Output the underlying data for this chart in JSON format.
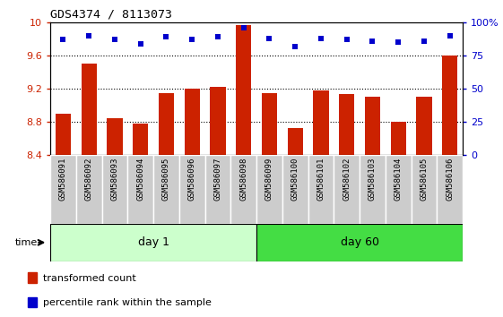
{
  "title": "GDS4374 / 8113073",
  "samples": [
    "GSM586091",
    "GSM586092",
    "GSM586093",
    "GSM586094",
    "GSM586095",
    "GSM586096",
    "GSM586097",
    "GSM586098",
    "GSM586099",
    "GSM586100",
    "GSM586101",
    "GSM586102",
    "GSM586103",
    "GSM586104",
    "GSM586105",
    "GSM586106"
  ],
  "bar_values": [
    8.9,
    9.5,
    8.85,
    8.78,
    9.15,
    9.2,
    9.22,
    9.97,
    9.15,
    8.73,
    9.18,
    9.14,
    9.1,
    8.8,
    9.1,
    9.6
  ],
  "dot_values": [
    87,
    90,
    87,
    84,
    89,
    87,
    89,
    96,
    88,
    82,
    88,
    87,
    86,
    85,
    86,
    90
  ],
  "ylim_left": [
    8.4,
    10.0
  ],
  "ylim_right": [
    0,
    100
  ],
  "yticks_left": [
    8.4,
    8.8,
    9.2,
    9.6,
    10.0
  ],
  "ytick_labels_left": [
    "8.4",
    "8.8",
    "9.2",
    "9.6",
    "10"
  ],
  "yticks_right": [
    0,
    25,
    50,
    75,
    100
  ],
  "ytick_labels_right": [
    "0",
    "25",
    "50",
    "75",
    "100%"
  ],
  "dotted_lines": [
    8.8,
    9.2,
    9.6
  ],
  "bar_color": "#cc2200",
  "dot_color": "#0000cc",
  "tick_label_color_left": "#cc2200",
  "tick_label_color_right": "#0000cc",
  "legend_bar_label": "transformed count",
  "legend_dot_label": "percentile rank within the sample",
  "day1_color": "#ccffcc",
  "day60_color": "#44dd44",
  "sample_box_color": "#cccccc",
  "figsize": [
    5.61,
    3.54
  ],
  "dpi": 100
}
